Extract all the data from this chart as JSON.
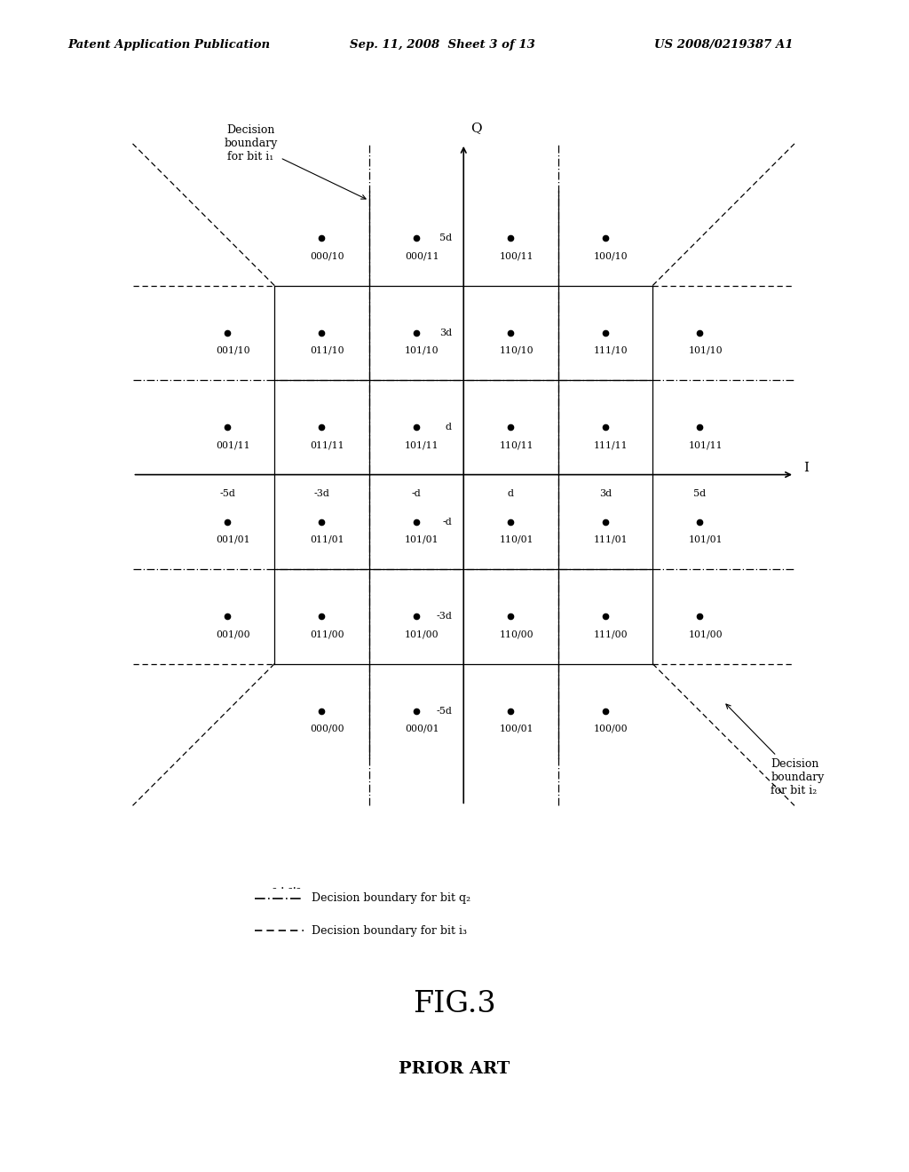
{
  "background_color": "#ffffff",
  "header_left": "Patent Application Publication",
  "header_center": "Sep. 11, 2008  Sheet 3 of 13",
  "header_right": "US 2008/0219387 A1",
  "fig_label": "FIG.3",
  "fig_sublabel": "PRIOR ART",
  "symbols": [
    {
      "label": "000/10",
      "ix": -3,
      "qy": 5
    },
    {
      "label": "000/11",
      "ix": -1,
      "qy": 5
    },
    {
      "label": "100/11",
      "ix": 1,
      "qy": 5
    },
    {
      "label": "100/10",
      "ix": 3,
      "qy": 5
    },
    {
      "label": "001/10",
      "ix": -5,
      "qy": 3
    },
    {
      "label": "011/10",
      "ix": -3,
      "qy": 3
    },
    {
      "label": "101/10",
      "ix": -1,
      "qy": 3
    },
    {
      "label": "110/10",
      "ix": 1,
      "qy": 3
    },
    {
      "label": "111/10",
      "ix": 3,
      "qy": 3
    },
    {
      "label": "101/10",
      "ix": 5,
      "qy": 3
    },
    {
      "label": "001/11",
      "ix": -5,
      "qy": 1
    },
    {
      "label": "011/11",
      "ix": -3,
      "qy": 1
    },
    {
      "label": "101/11",
      "ix": -1,
      "qy": 1
    },
    {
      "label": "110/11",
      "ix": 1,
      "qy": 1
    },
    {
      "label": "111/11",
      "ix": 3,
      "qy": 1
    },
    {
      "label": "101/11",
      "ix": 5,
      "qy": 1
    },
    {
      "label": "001/01",
      "ix": -5,
      "qy": -1
    },
    {
      "label": "011/01",
      "ix": -3,
      "qy": -1
    },
    {
      "label": "101/01",
      "ix": -1,
      "qy": -1
    },
    {
      "label": "110/01",
      "ix": 1,
      "qy": -1
    },
    {
      "label": "111/01",
      "ix": 3,
      "qy": -1
    },
    {
      "label": "101/01",
      "ix": 5,
      "qy": -1
    },
    {
      "label": "001/00",
      "ix": -5,
      "qy": -3
    },
    {
      "label": "011/00",
      "ix": -3,
      "qy": -3
    },
    {
      "label": "101/00",
      "ix": -1,
      "qy": -3
    },
    {
      "label": "110/00",
      "ix": 1,
      "qy": -3
    },
    {
      "label": "111/00",
      "ix": 3,
      "qy": -3
    },
    {
      "label": "101/00",
      "ix": 5,
      "qy": -3
    },
    {
      "label": "000/00",
      "ix": -3,
      "qy": -5
    },
    {
      "label": "000/01",
      "ix": -1,
      "qy": -5
    },
    {
      "label": "100/01",
      "ix": 1,
      "qy": -5
    },
    {
      "label": "100/00",
      "ix": 3,
      "qy": -5
    }
  ],
  "legend_dash_dot": "Decision boundary for bit q₂",
  "legend_dashed": "Decision boundary for bit i₃",
  "decision_boundary_i1_label": "Decision\nboundary\nfor bit i₁",
  "decision_boundary_i2_label": "Decision\nboundary\nfor bit i₂",
  "Q_axis_label": "Q",
  "I_axis_label": "I"
}
